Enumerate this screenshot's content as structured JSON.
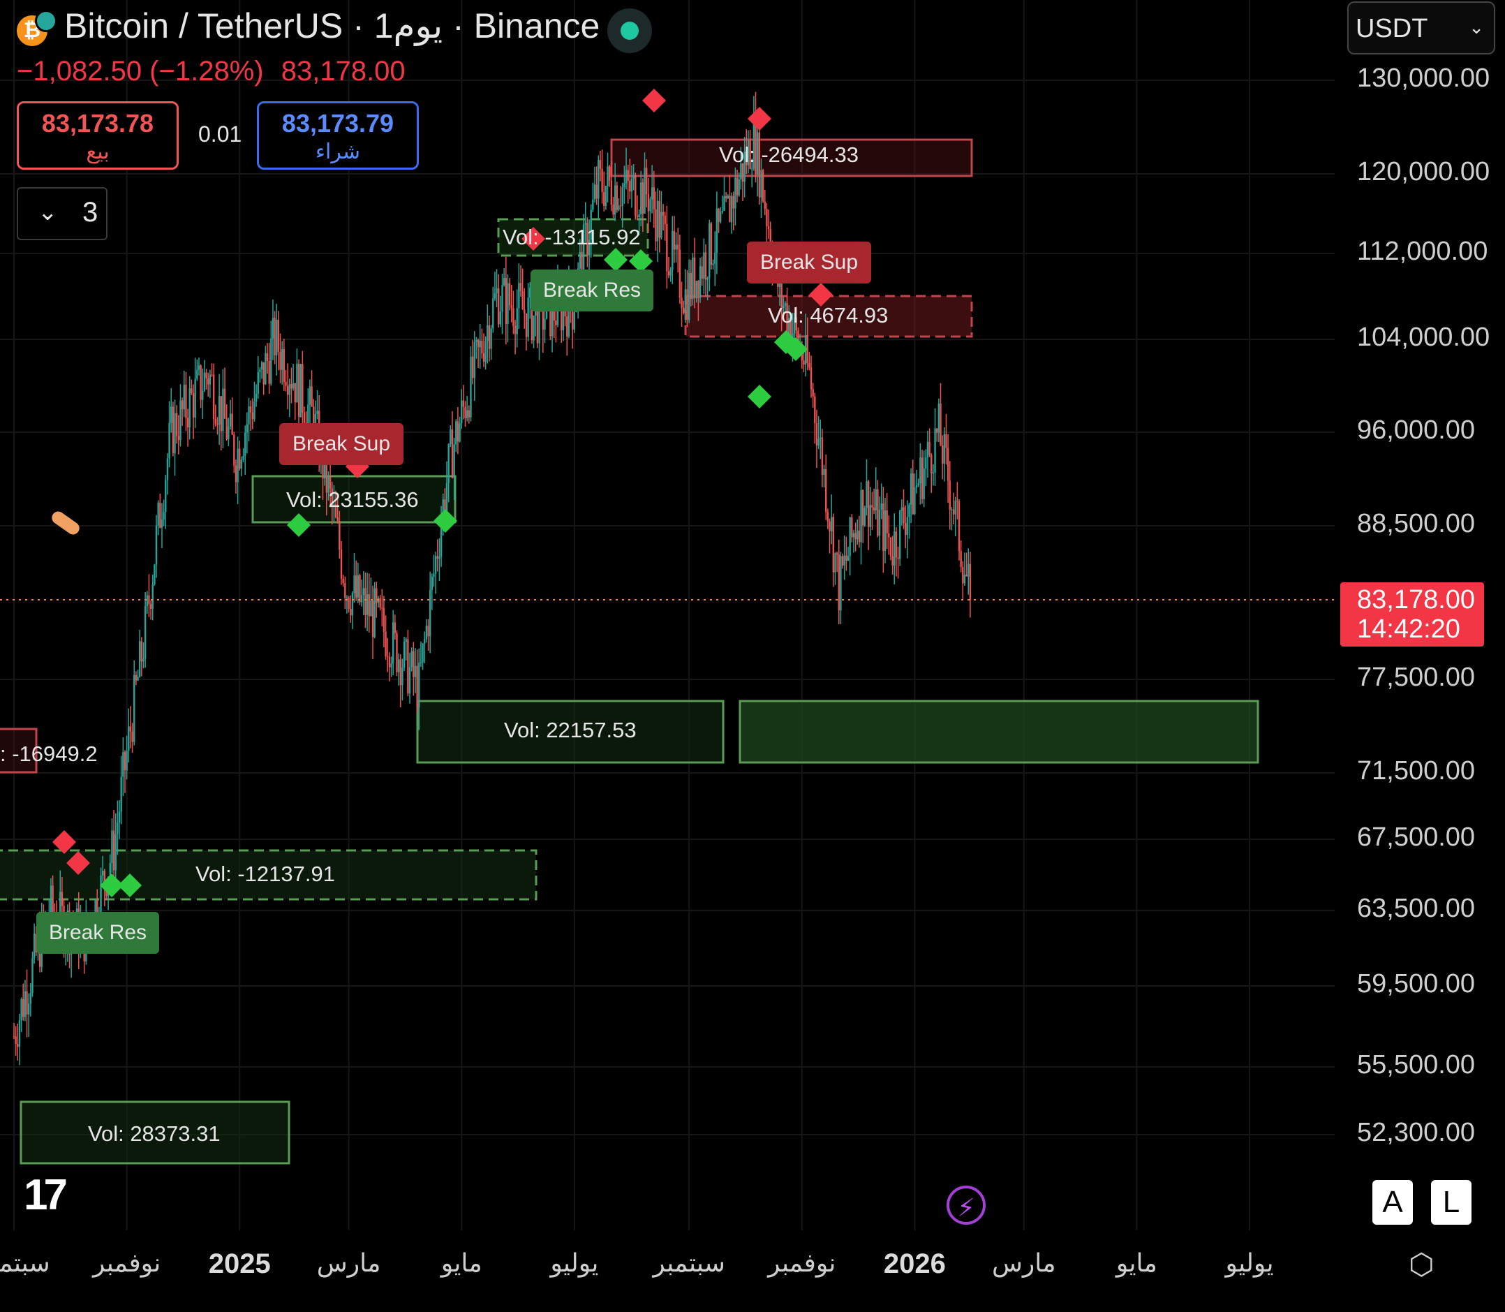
{
  "header": {
    "title": "Bitcoin / TetherUS · 1يوم · Binance",
    "change": "−1,082.50 (−1.28%)",
    "last": "83,178.00",
    "coin_symbol": "₿",
    "sell": {
      "price": "83,173.78",
      "label": "بيع"
    },
    "buy": {
      "price": "83,173.79",
      "label": "شراء"
    },
    "spread": "0.01",
    "quantity": "3"
  },
  "currency_select": {
    "value": "USDT"
  },
  "colors": {
    "up": "#26a69a",
    "down": "#ef5350",
    "bull_green": "#2ecc40",
    "bear_red": "#f23645",
    "zone_green": "#5a9b55",
    "zone_red": "#c2444c"
  },
  "price_axis": {
    "labels": [
      "130,000.00",
      "120,000.00",
      "112,000.00",
      "104,000.00",
      "96,000.00",
      "88,500.00",
      "77,500.00",
      "71,500.00",
      "67,500.00",
      "63,500.00",
      "59,500.00",
      "55,500.00",
      "52,300.00"
    ],
    "last_price": "83,178.00",
    "countdown": "14:42:20"
  },
  "time_axis": {
    "labels": [
      "سبتمبر",
      "نوفمبر",
      "2025",
      "مارس",
      "مايو",
      "يوليو",
      "سبتمبر",
      "نوفمبر",
      "2026",
      "مارس",
      "مايو",
      "يوليو"
    ]
  },
  "zones": {
    "vol_1": "Vol: -26494.33",
    "vol_2": "Vol: -13115.92",
    "vol_3": "Vol: 4674.93",
    "vol_4": "Vol: 23155.36",
    "vol_5": "Vol: 22157.53",
    "vol_6": ": -16949.2",
    "vol_7": "Vol: -12137.91",
    "vol_8": "Vol: 28373.31"
  },
  "signals": {
    "break_sup_1": "Break Sup",
    "break_sup_2": "Break Sup",
    "break_res_1": "Break Res",
    "break_res_2": "Break Res"
  },
  "toolbar": {
    "auto_label": "A",
    "log_label": "L"
  },
  "chart_data": {
    "type": "candlestick",
    "symbol": "BTC/USDT",
    "x": [
      "2024-09",
      "2024-11",
      "2025-01",
      "2025-03",
      "2025-05",
      "2025-07",
      "2025-09",
      "2025-11",
      "2026-01",
      "2026-03",
      "2026-05",
      "2026-07"
    ],
    "close_path": [
      [
        "2024-09-01",
        57000
      ],
      [
        "2024-09-20",
        63500
      ],
      [
        "2024-10-10",
        62000
      ],
      [
        "2024-10-25",
        67000
      ],
      [
        "2024-11-10",
        80000
      ],
      [
        "2024-11-25",
        96000
      ],
      [
        "2024-12-15",
        101000
      ],
      [
        "2024-12-30",
        94000
      ],
      [
        "2025-01-20",
        104000
      ],
      [
        "2025-02-10",
        97000
      ],
      [
        "2025-02-28",
        84000
      ],
      [
        "2025-03-15",
        82000
      ],
      [
        "2025-04-08",
        77000
      ],
      [
        "2025-04-25",
        94000
      ],
      [
        "2025-05-20",
        108000
      ],
      [
        "2025-06-10",
        106000
      ],
      [
        "2025-06-30",
        107000
      ],
      [
        "2025-07-14",
        119000
      ],
      [
        "2025-08-10",
        118000
      ],
      [
        "2025-08-30",
        108000
      ],
      [
        "2025-09-20",
        115000
      ],
      [
        "2025-10-06",
        124000
      ],
      [
        "2025-10-20",
        108000
      ],
      [
        "2025-11-05",
        101000
      ],
      [
        "2025-11-21",
        84000
      ],
      [
        "2025-12-05",
        91000
      ],
      [
        "2025-12-20",
        87000
      ],
      [
        "2026-01-14",
        96000
      ],
      [
        "2026-01-31",
        83178
      ]
    ],
    "last": 83178,
    "ylim": [
      50000,
      132000
    ]
  }
}
